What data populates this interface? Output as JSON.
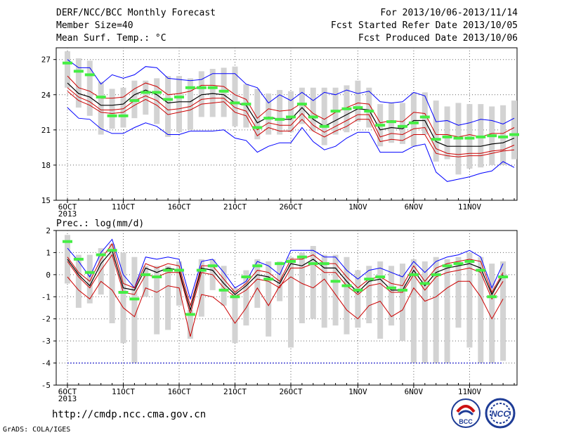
{
  "header": {
    "title": "DERF/NCC/BCC Monthly Forecast",
    "member": "Member Size=40",
    "variable": "Mean Surf. Temp.: °C",
    "period": "For 2013/10/06-2013/11/14",
    "started": "Fcst Started Refer Date 2013/10/05",
    "produced": "Fcst Produced Date 2013/10/06"
  },
  "footer": {
    "url": "http://cmdp.ncc.cma.gov.cn",
    "grads": "GrADS: COLA/IGES",
    "logo_left_text": "BCC",
    "logo_right_text": "NCC"
  },
  "colors": {
    "envelope": "#0000ff",
    "spread": "#cc0000",
    "mean": "#000000",
    "box": "#d3d3d3",
    "median": "#44ee44",
    "floor": "#0000cc"
  },
  "chart_data": [
    {
      "type": "line",
      "ylabel": "Mean Surf. Temp.: °C",
      "ylim": [
        15,
        28
      ],
      "yticks": [
        15,
        18,
        21,
        24,
        27
      ],
      "xtick_labels": [
        {
          "day": 1,
          "label": "6OCT",
          "sub": "2013"
        },
        {
          "day": 6,
          "label": "11OCT"
        },
        {
          "day": 11,
          "label": "16OCT"
        },
        {
          "day": 16,
          "label": "21OCT"
        },
        {
          "day": 21,
          "label": "26OCT"
        },
        {
          "day": 27,
          "label": "1NOV"
        },
        {
          "day": 32,
          "label": "6NOV"
        },
        {
          "day": 37,
          "label": "11NOV"
        }
      ],
      "grid": "dotted",
      "max": [
        27.0,
        26.3,
        26.3,
        24.9,
        25.7,
        25.4,
        25.7,
        26.4,
        26.3,
        25.4,
        25.3,
        25.2,
        25.3,
        25.8,
        25.8,
        25.8,
        24.9,
        24.6,
        23.3,
        24.0,
        23.5,
        24.2,
        23.5,
        24.2,
        24.0,
        24.4,
        24.1,
        24.3,
        23.4,
        23.3,
        23.4,
        24.2,
        23.9,
        21.7,
        21.8,
        21.4,
        21.6,
        21.9,
        21.8,
        21.5,
        22.0
      ],
      "upper": [
        25.6,
        24.6,
        24.3,
        23.7,
        23.7,
        23.8,
        24.5,
        25.0,
        24.7,
        24.0,
        24.1,
        24.3,
        24.8,
        24.8,
        24.7,
        24.0,
        23.6,
        22.0,
        22.8,
        22.6,
        22.7,
        23.3,
        22.4,
        21.9,
        22.5,
        22.9,
        23.3,
        23.2,
        21.6,
        21.8,
        21.7,
        22.5,
        22.4,
        20.6,
        20.6,
        20.4,
        20.6,
        20.4,
        20.7,
        20.7,
        21.2
      ],
      "mean": [
        25.0,
        24.1,
        23.8,
        23.1,
        23.1,
        23.2,
        24.0,
        24.4,
        24.0,
        23.3,
        23.4,
        23.4,
        24.0,
        24.1,
        24.0,
        23.3,
        23.1,
        21.6,
        22.1,
        21.9,
        21.9,
        22.9,
        21.9,
        21.3,
        21.8,
        22.3,
        22.8,
        22.7,
        21.0,
        21.2,
        21.1,
        21.8,
        21.8,
        20.0,
        19.6,
        19.6,
        19.6,
        19.6,
        19.8,
        19.9,
        20.3
      ],
      "lower": [
        24.6,
        23.8,
        23.4,
        22.7,
        22.7,
        22.8,
        23.5,
        23.9,
        23.5,
        22.7,
        22.8,
        23.0,
        23.6,
        23.7,
        23.7,
        22.9,
        22.6,
        21.0,
        21.6,
        21.4,
        21.4,
        22.4,
        21.4,
        20.8,
        21.3,
        21.8,
        22.3,
        22.3,
        20.4,
        20.7,
        20.6,
        21.1,
        21.2,
        19.4,
        19.0,
        18.9,
        19.0,
        19.0,
        19.2,
        19.3,
        19.7
      ],
      "lowest": [
        24.3,
        23.5,
        23.1,
        22.5,
        22.4,
        22.5,
        23.1,
        23.6,
        23.1,
        22.3,
        22.5,
        22.7,
        23.2,
        23.3,
        23.4,
        22.5,
        22.2,
        20.5,
        21.2,
        20.9,
        20.9,
        21.9,
        20.9,
        20.4,
        20.9,
        21.3,
        21.9,
        21.9,
        20.0,
        20.2,
        20.1,
        20.6,
        20.6,
        19.0,
        18.8,
        18.7,
        18.8,
        18.8,
        19.0,
        19.2,
        19.3
      ],
      "min": [
        22.9,
        22.0,
        21.9,
        21.1,
        20.7,
        20.7,
        21.2,
        21.6,
        21.3,
        20.6,
        20.6,
        20.9,
        20.9,
        20.9,
        21.0,
        20.3,
        20.1,
        19.1,
        19.6,
        19.9,
        19.9,
        21.2,
        20.0,
        19.3,
        19.6,
        20.3,
        20.8,
        20.8,
        19.1,
        19.1,
        19.1,
        19.6,
        19.8,
        17.4,
        16.6,
        16.8,
        17.0,
        17.3,
        17.5,
        18.3,
        17.8
      ],
      "box_high": [
        27.7,
        27.1,
        26.9,
        25.1,
        24.5,
        24.6,
        25.2,
        25.2,
        25.4,
        25.6,
        25.6,
        25.4,
        26.0,
        26.2,
        26.3,
        26.4,
        24.9,
        24.5,
        24.1,
        24.4,
        24.3,
        24.6,
        24.6,
        24.6,
        24.6,
        24.8,
        25.2,
        24.6,
        23.2,
        23.3,
        23.3,
        24.2,
        24.2,
        23.5,
        23.0,
        23.3,
        23.2,
        23.2,
        23.0,
        23.1,
        23.5
      ],
      "box_low": [
        24.6,
        22.9,
        22.2,
        20.6,
        21.1,
        21.2,
        22.0,
        22.3,
        21.5,
        20.4,
        20.8,
        21.0,
        22.1,
        22.1,
        22.1,
        21.3,
        21.2,
        20.2,
        20.6,
        20.6,
        20.8,
        21.5,
        20.9,
        19.7,
        20.6,
        20.8,
        21.7,
        21.2,
        19.6,
        19.9,
        19.8,
        19.6,
        20.6,
        18.3,
        18.5,
        17.2,
        17.7,
        17.8,
        18.0,
        18.0,
        18.5
      ],
      "median": [
        26.7,
        26.0,
        25.7,
        23.8,
        22.2,
        22.2,
        23.5,
        24.2,
        24.2,
        23.6,
        23.8,
        24.6,
        24.6,
        24.6,
        24.3,
        23.3,
        23.2,
        21.2,
        22.0,
        21.9,
        22.1,
        23.2,
        22.1,
        21.3,
        22.6,
        22.8,
        22.9,
        22.6,
        21.4,
        21.7,
        21.3,
        21.6,
        22.1,
        20.2,
        20.4,
        20.3,
        20.3,
        20.4,
        20.5,
        20.4,
        20.6
      ]
    },
    {
      "type": "line",
      "ylabel": "Prec.: log(mm/d)",
      "ylim": [
        -5,
        2
      ],
      "yticks": [
        -5,
        -4,
        -3,
        -2,
        -1,
        0,
        1,
        2
      ],
      "xtick_labels": [
        {
          "day": 1,
          "label": "6OCT",
          "sub": "2013"
        },
        {
          "day": 6,
          "label": "11OCT"
        },
        {
          "day": 11,
          "label": "16OCT"
        },
        {
          "day": 16,
          "label": "21OCT"
        },
        {
          "day": 21,
          "label": "26OCT"
        },
        {
          "day": 27,
          "label": "1NOV"
        },
        {
          "day": 32,
          "label": "6NOV"
        },
        {
          "day": 37,
          "label": "11NOV"
        }
      ],
      "grid": "dotted",
      "floor_line": -4,
      "max": [
        1.2,
        0.6,
        -0.1,
        1.0,
        1.6,
        0.0,
        -0.6,
        0.8,
        0.7,
        0.8,
        0.7,
        -1.1,
        0.6,
        0.7,
        0.1,
        -0.6,
        -0.3,
        0.6,
        0.4,
        0.0,
        1.1,
        1.1,
        1.1,
        0.8,
        0.8,
        0.2,
        -0.2,
        0.2,
        0.3,
        0.1,
        -0.1,
        0.6,
        0.1,
        0.6,
        0.8,
        0.9,
        1.1,
        0.8,
        -0.6,
        0.5
      ],
      "upper": [
        0.8,
        0.1,
        -0.3,
        0.7,
        1.4,
        -0.4,
        -0.6,
        0.5,
        0.3,
        0.5,
        0.4,
        -1.4,
        0.4,
        0.4,
        -0.2,
        -0.8,
        -0.4,
        0.2,
        0.1,
        -0.3,
        0.7,
        0.7,
        0.9,
        0.5,
        0.5,
        -0.1,
        -0.6,
        -0.2,
        -0.1,
        -0.4,
        -0.5,
        0.4,
        -0.3,
        0.3,
        0.5,
        0.6,
        0.7,
        0.6,
        -0.8,
        0.1
      ],
      "mean": [
        0.7,
        0.0,
        -0.5,
        0.5,
        1.1,
        -0.6,
        -0.7,
        0.3,
        0.1,
        0.3,
        0.2,
        -1.6,
        0.3,
        0.2,
        -0.4,
        -0.9,
        -0.5,
        0.0,
        -0.1,
        -0.4,
        0.5,
        0.4,
        0.7,
        0.3,
        0.3,
        -0.3,
        -0.8,
        -0.3,
        -0.2,
        -0.7,
        -0.7,
        0.2,
        -0.5,
        0.1,
        0.3,
        0.4,
        0.5,
        0.3,
        -0.9,
        0.0
      ],
      "lower": [
        0.6,
        -0.1,
        -0.6,
        0.2,
        0.9,
        -0.8,
        -0.9,
        0.0,
        -0.1,
        0.1,
        0.1,
        -1.8,
        0.1,
        0.0,
        -0.6,
        -1.0,
        -0.7,
        -0.2,
        -0.3,
        -0.6,
        0.3,
        0.3,
        0.5,
        0.1,
        0.1,
        -0.5,
        -0.9,
        -0.5,
        -0.4,
        -0.8,
        -0.8,
        0.0,
        -0.7,
        -0.1,
        0.1,
        0.2,
        0.3,
        0.1,
        -1.1,
        -0.3
      ],
      "lowest": [
        -0.1,
        -0.7,
        -1.1,
        -0.3,
        -0.7,
        -1.5,
        -1.9,
        -0.6,
        -0.8,
        -0.5,
        -0.6,
        -2.8,
        -0.9,
        -1.0,
        -1.4,
        -2.2,
        -1.5,
        -0.6,
        -1.4,
        -0.5,
        -0.1,
        -0.4,
        -0.6,
        -0.2,
        -0.9,
        -1.6,
        -2.0,
        -1.4,
        -1.2,
        -1.9,
        -1.6,
        -0.6,
        -1.2,
        -1.0,
        -0.6,
        -0.3,
        -0.3,
        -1.0,
        -2.0,
        -1.1
      ],
      "box_high": [
        1.8,
        0.9,
        0.9,
        1.2,
        1.4,
        1.0,
        0.8,
        0.4,
        0.4,
        0.4,
        0.6,
        -1.6,
        0.7,
        0.7,
        0.4,
        -0.6,
        0.2,
        0.7,
        0.6,
        0.6,
        0.8,
        1.0,
        1.3,
        0.9,
        0.9,
        0.8,
        0.2,
        0.4,
        0.6,
        0.4,
        0.5,
        0.7,
        0.6,
        0.8,
        0.7,
        0.8,
        1.0,
        0.8,
        0.5,
        0.6
      ],
      "box_low": [
        -0.4,
        -1.5,
        -1.3,
        -0.9,
        -2.2,
        -3.1,
        -4.0,
        -1.0,
        -2.7,
        -2.5,
        -1.4,
        -2.9,
        -1.9,
        -0.7,
        -1.4,
        -3.1,
        -2.3,
        -1.5,
        -2.8,
        -1.2,
        -3.3,
        -2.2,
        -2.0,
        -2.4,
        -2.3,
        -2.7,
        -2.4,
        -2.2,
        -2.9,
        -2.3,
        -3.0,
        -4.0,
        -4.0,
        -4.0,
        -4.0,
        -2.4,
        -3.3,
        -4.0,
        -4.0,
        -3.9
      ],
      "median": [
        1.5,
        0.7,
        0.1,
        0.9,
        1.1,
        -0.8,
        -1.1,
        0.0,
        -0.1,
        0.2,
        0.2,
        -1.8,
        0.2,
        0.4,
        -0.7,
        -1.0,
        -0.1,
        0.4,
        -0.2,
        0.5,
        0.6,
        0.8,
        0.5,
        0.5,
        -0.3,
        -0.5,
        -0.7,
        -0.2,
        -0.1,
        -0.6,
        -0.7,
        0.0,
        -0.4,
        0.0,
        0.4,
        0.5,
        0.6,
        0.2,
        -1.0,
        -0.1
      ]
    }
  ]
}
